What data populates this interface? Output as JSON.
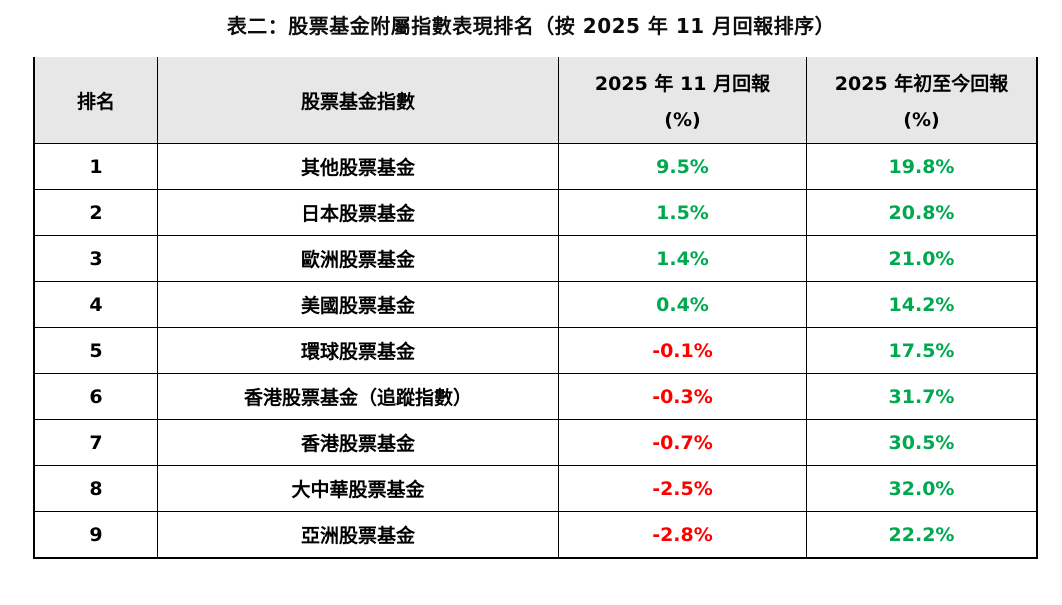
{
  "title": "表二：股票基金附屬指數表現排名（按 2025 年 11 月回報排序）",
  "colors": {
    "positive_value": "#00A84F",
    "negative_value": "#FF0000",
    "header_background": "#E7E7E7",
    "border": "#000000"
  },
  "table": {
    "headers": {
      "rank": "排名",
      "fund_index": "股票基金指數",
      "nov_return_line1": "2025 年 11 月回報",
      "nov_return_line2": "(%)",
      "ytd_return_line1": "2025 年初至今回報",
      "ytd_return_line2": "(%)"
    },
    "rows": [
      {
        "rank": "1",
        "name": "其他股票基金",
        "nov": "9.5%",
        "nov_tone": "positive",
        "ytd": "19.8%",
        "ytd_tone": "positive"
      },
      {
        "rank": "2",
        "name": "日本股票基金",
        "nov": "1.5%",
        "nov_tone": "positive",
        "ytd": "20.8%",
        "ytd_tone": "positive"
      },
      {
        "rank": "3",
        "name": "歐洲股票基金",
        "nov": "1.4%",
        "nov_tone": "positive",
        "ytd": "21.0%",
        "ytd_tone": "positive"
      },
      {
        "rank": "4",
        "name": "美國股票基金",
        "nov": "0.4%",
        "nov_tone": "positive",
        "ytd": "14.2%",
        "ytd_tone": "positive"
      },
      {
        "rank": "5",
        "name": "環球股票基金",
        "nov": "-0.1%",
        "nov_tone": "negative",
        "ytd": "17.5%",
        "ytd_tone": "positive"
      },
      {
        "rank": "6",
        "name": "香港股票基金（追蹤指數）",
        "nov": "-0.3%",
        "nov_tone": "negative",
        "ytd": "31.7%",
        "ytd_tone": "positive"
      },
      {
        "rank": "7",
        "name": "香港股票基金",
        "nov": "-0.7%",
        "nov_tone": "negative",
        "ytd": "30.5%",
        "ytd_tone": "positive"
      },
      {
        "rank": "8",
        "name": "大中華股票基金",
        "nov": "-2.5%",
        "nov_tone": "negative",
        "ytd": "32.0%",
        "ytd_tone": "positive"
      },
      {
        "rank": "9",
        "name": "亞洲股票基金",
        "nov": "-2.8%",
        "nov_tone": "negative",
        "ytd": "22.2%",
        "ytd_tone": "positive"
      }
    ]
  }
}
